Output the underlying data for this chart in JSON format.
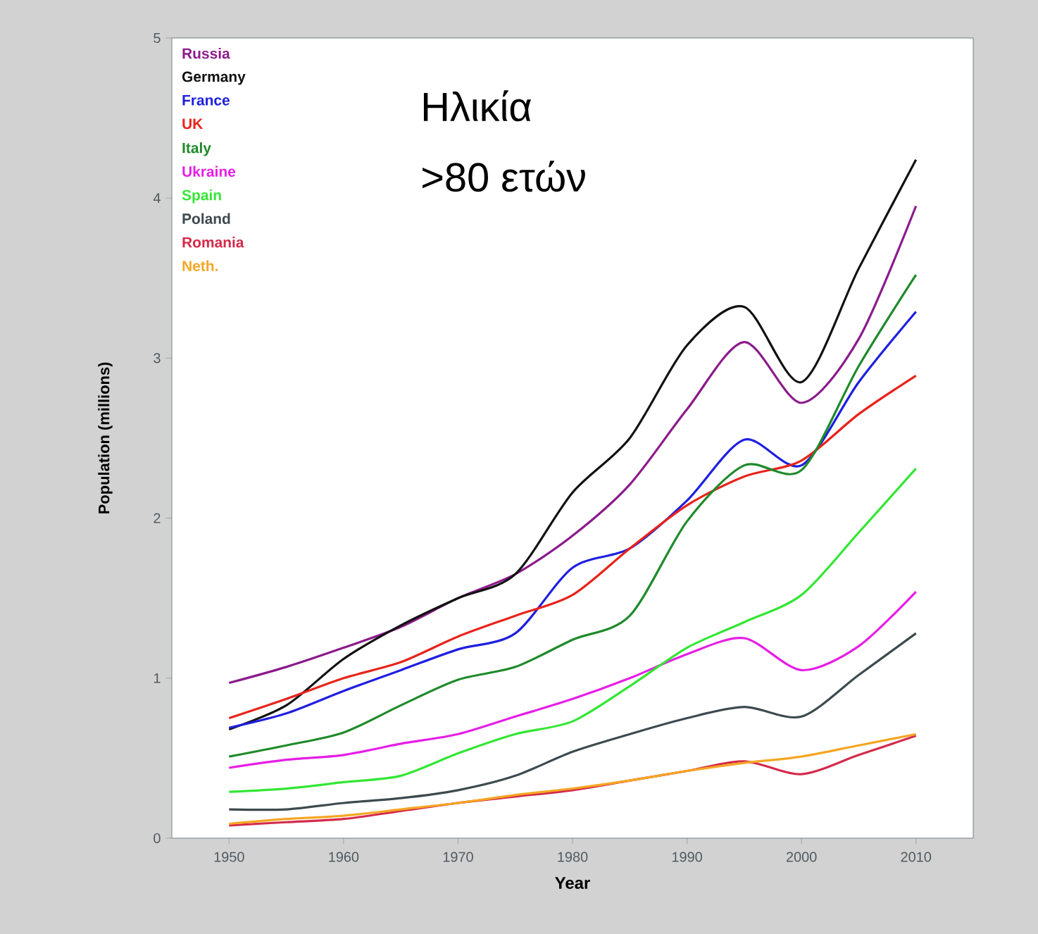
{
  "chart_data": {
    "type": "line",
    "xlabel": "Year",
    "ylabel": "Population (millions)",
    "annotations": [
      "Ηλικία",
      ">80 ετών"
    ],
    "x": [
      1950,
      1955,
      1960,
      1965,
      1970,
      1975,
      1980,
      1985,
      1990,
      1995,
      2000,
      2005,
      2010
    ],
    "series": [
      {
        "name": "Russia",
        "color": "#8b1a8b",
        "values": [
          0.97,
          1.07,
          1.19,
          1.32,
          1.5,
          1.65,
          1.89,
          2.21,
          2.68,
          3.1,
          2.72,
          3.12,
          3.95
        ]
      },
      {
        "name": "Germany",
        "color": "#111111",
        "values": [
          0.68,
          0.83,
          1.12,
          1.33,
          1.5,
          1.65,
          2.16,
          2.5,
          3.08,
          3.32,
          2.85,
          3.56,
          4.24
        ]
      },
      {
        "name": "France",
        "color": "#1f1fe0",
        "values": [
          0.69,
          0.78,
          0.92,
          1.05,
          1.18,
          1.28,
          1.69,
          1.81,
          2.11,
          2.49,
          2.33,
          2.85,
          3.29
        ]
      },
      {
        "name": "UK",
        "color": "#e8231a",
        "values": [
          0.75,
          0.87,
          1.0,
          1.1,
          1.26,
          1.39,
          1.52,
          1.81,
          2.08,
          2.26,
          2.36,
          2.65,
          2.89
        ]
      },
      {
        "name": "Italy",
        "color": "#1f8a2a",
        "values": [
          0.51,
          0.58,
          0.66,
          0.83,
          0.99,
          1.07,
          1.24,
          1.39,
          1.98,
          2.33,
          2.3,
          2.95,
          3.52
        ]
      },
      {
        "name": "Ukraine",
        "color": "#e61ee6",
        "values": [
          0.44,
          0.49,
          0.52,
          0.59,
          0.65,
          0.76,
          0.87,
          1.0,
          1.15,
          1.25,
          1.05,
          1.2,
          1.54
        ]
      },
      {
        "name": "Spain",
        "color": "#33e633",
        "values": [
          0.29,
          0.31,
          0.35,
          0.39,
          0.53,
          0.65,
          0.73,
          0.95,
          1.19,
          1.35,
          1.52,
          1.91,
          2.31
        ]
      },
      {
        "name": "Poland",
        "color": "#3d4a4f",
        "values": [
          0.18,
          0.18,
          0.22,
          0.25,
          0.3,
          0.39,
          0.54,
          0.65,
          0.75,
          0.82,
          0.76,
          1.02,
          1.28
        ]
      },
      {
        "name": "Romania",
        "color": "#d42a4a",
        "values": [
          0.08,
          0.1,
          0.12,
          0.17,
          0.22,
          0.26,
          0.3,
          0.36,
          0.42,
          0.48,
          0.4,
          0.52,
          0.64
        ]
      },
      {
        "name": "Neth.",
        "color": "#f5a623",
        "values": [
          0.09,
          0.12,
          0.14,
          0.18,
          0.22,
          0.27,
          0.31,
          0.36,
          0.42,
          0.47,
          0.51,
          0.58,
          0.65
        ]
      }
    ],
    "xlim": [
      1945,
      2015
    ],
    "ylim": [
      0,
      5
    ],
    "xticks": [
      1950,
      1960,
      1970,
      1980,
      1990,
      2000,
      2010
    ],
    "yticks": [
      0,
      1,
      2,
      3,
      4,
      5
    ],
    "legend": "top left"
  }
}
